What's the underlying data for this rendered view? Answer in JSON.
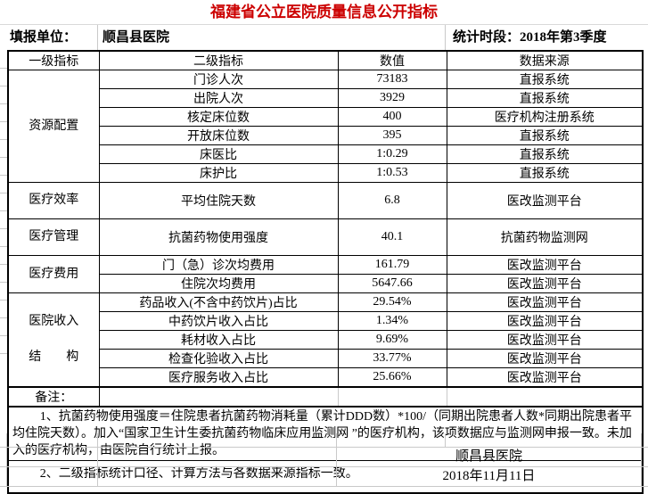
{
  "title": "福建省公立医院质量信息公开指标",
  "accent_color": "#cc0000",
  "form": {
    "unit_label": "填报单位：",
    "unit_value": "顺昌县医院",
    "period_label": "统计时段：",
    "period_value": "2018年第3季度"
  },
  "table": {
    "headers": [
      "一级指标",
      "二级指标",
      "数值",
      "数据来源"
    ],
    "groups": [
      {
        "label": "资源配置",
        "rows": [
          [
            "门诊人次",
            "73183",
            "直报系统"
          ],
          [
            "出院人次",
            "3929",
            "直报系统"
          ],
          [
            "核定床位数",
            "400",
            "医疗机构注册系统"
          ],
          [
            "开放床位数",
            "395",
            "直报系统"
          ],
          [
            "床医比",
            "1:0.29",
            "直报系统"
          ],
          [
            "床护比",
            "1:0.53",
            "直报系统"
          ]
        ]
      },
      {
        "label": "医疗效率",
        "rows": [
          [
            "平均住院天数",
            "6.8",
            "医改监测平台"
          ]
        ]
      },
      {
        "label": "医疗管理",
        "rows": [
          [
            "抗菌药物使用强度",
            "40.1",
            "抗菌药物监测网"
          ]
        ]
      },
      {
        "label": "医疗费用",
        "rows": [
          [
            "门（急）诊次均费用",
            "161.79",
            "医改监测平台"
          ],
          [
            "住院次均费用",
            "5647.66",
            "医改监测平台"
          ]
        ]
      },
      {
        "label": "医院收入\n结　　构",
        "rows": [
          [
            "药品收入(不含中药饮片)占比",
            "29.54%",
            "医改监测平台"
          ],
          [
            "中药饮片收入占比",
            "1.34%",
            "医改监测平台"
          ],
          [
            "耗材收入占比",
            "9.69%",
            "医改监测平台"
          ],
          [
            "检查化验收入占比",
            "33.77%",
            "医改监测平台"
          ],
          [
            "医疗服务收入占比",
            "25.66%",
            "医改监测平台"
          ]
        ]
      }
    ]
  },
  "notes": {
    "label": "备注：",
    "items": [
      "1、抗菌药物使用强度＝住院患者抗菌药物消耗量（累计DDD数）*100/（同期出院患者人数*同期出院患者平均住院天数）。加入“国家卫生计生委抗菌药物临床应用监测网 ”的医疗机构，该项数据应与监测网申报一致。未加入的医疗机构，由医院自行统计上报。",
      "2、二级指标统计口径、计算方法与各数据来源指标一致。"
    ]
  },
  "footer": {
    "hospital": "顺昌县医院",
    "date": "2018年11月11日"
  }
}
